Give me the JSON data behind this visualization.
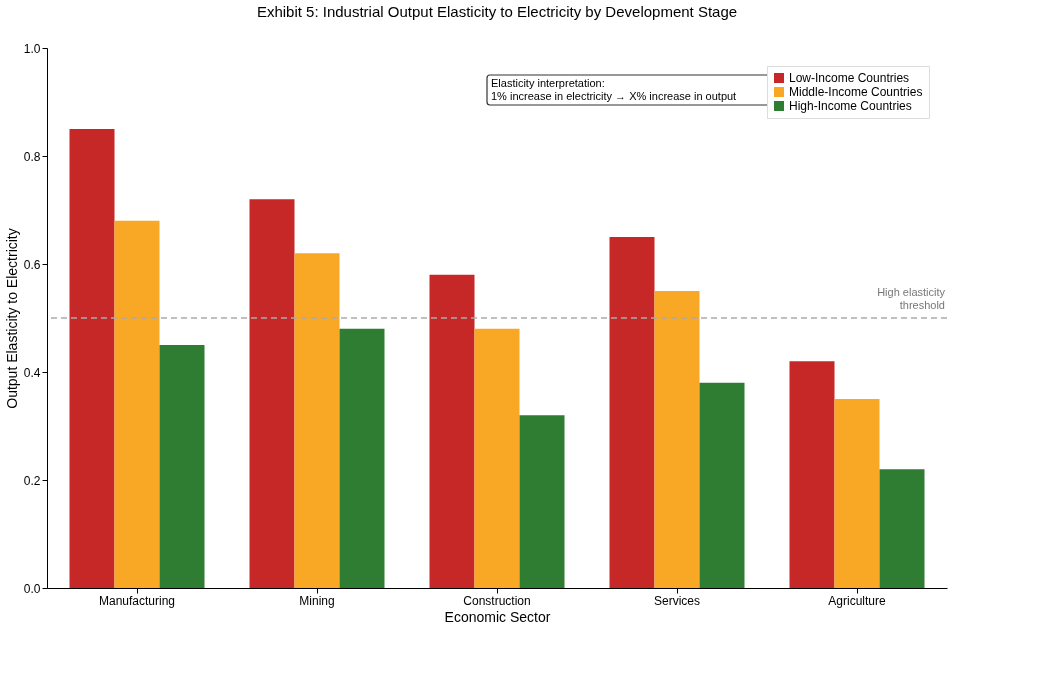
{
  "chart_data": {
    "type": "bar",
    "title": "Exhibit 5: Industrial Output Elasticity to Electricity by Development Stage",
    "xlabel": "Economic Sector",
    "ylabel": "Output Elasticity to Electricity",
    "categories": [
      "Manufacturing",
      "Mining",
      "Construction",
      "Services",
      "Agriculture"
    ],
    "series": [
      {
        "name": "Low-Income Countries",
        "color": "#c62828",
        "values": [
          0.85,
          0.72,
          0.58,
          0.65,
          0.42
        ]
      },
      {
        "name": "Middle-Income Countries",
        "color": "#f9a825",
        "values": [
          0.68,
          0.62,
          0.48,
          0.55,
          0.35
        ]
      },
      {
        "name": "High-Income Countries",
        "color": "#2e7d32",
        "values": [
          0.45,
          0.48,
          0.32,
          0.38,
          0.22
        ]
      }
    ],
    "ylim": [
      0,
      1
    ],
    "yticks": [
      {
        "value": 0,
        "label": "0.0"
      },
      0.2,
      0.4,
      0.6,
      0.8,
      {
        "value": 1,
        "label": "1.0"
      }
    ],
    "ref_lines": [
      {
        "axis": "y",
        "value": 0.5,
        "label": "High elasticity\nthreshold",
        "color": "#aaaaaa",
        "line_style": "dashed"
      }
    ],
    "annotations": [
      "Elasticity interpretation:\n1% increase in electricity → X% increase in output"
    ],
    "legend": "top right",
    "grid": false
  }
}
